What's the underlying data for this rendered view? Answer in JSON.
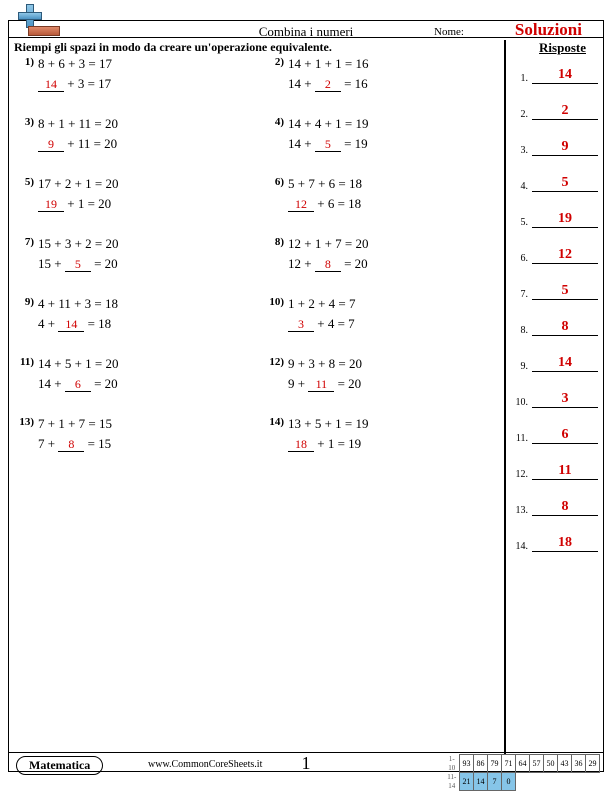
{
  "header": {
    "title": "Combina i numeri",
    "name_label": "Nome:",
    "solutions_label": "Soluzioni"
  },
  "instructions": "Riempi gli spazi in modo da creare un'operazione equivalente.",
  "answers_header": "Risposte",
  "colors": {
    "answer": "#d00000",
    "plus_fill": "#6aa8cc",
    "base_fill": "#c46a48"
  },
  "problems": [
    {
      "n": "1)",
      "line1": "8 + 6 + 3 = 17",
      "before": "",
      "blank": "14",
      "after": " + 3 = 17",
      "blank_pos": "start"
    },
    {
      "n": "2)",
      "line1": "14 + 1 + 1 = 16",
      "before": "14 + ",
      "blank": "2",
      "after": " = 16",
      "blank_pos": "mid"
    },
    {
      "n": "3)",
      "line1": "8 + 1 + 11 = 20",
      "before": "",
      "blank": "9",
      "after": " + 11 = 20",
      "blank_pos": "start"
    },
    {
      "n": "4)",
      "line1": "14 + 4 + 1 = 19",
      "before": "14 + ",
      "blank": "5",
      "after": " = 19",
      "blank_pos": "mid"
    },
    {
      "n": "5)",
      "line1": "17 + 2 + 1 = 20",
      "before": "",
      "blank": "19",
      "after": " + 1 = 20",
      "blank_pos": "start"
    },
    {
      "n": "6)",
      "line1": "5 + 7 + 6 = 18",
      "before": "",
      "blank": "12",
      "after": " + 6 = 18",
      "blank_pos": "start"
    },
    {
      "n": "7)",
      "line1": "15 + 3 + 2 = 20",
      "before": "15 + ",
      "blank": "5",
      "after": " = 20",
      "blank_pos": "mid"
    },
    {
      "n": "8)",
      "line1": "12 + 1 + 7 = 20",
      "before": "12 + ",
      "blank": "8",
      "after": " = 20",
      "blank_pos": "mid"
    },
    {
      "n": "9)",
      "line1": "4 + 11 + 3 = 18",
      "before": "4 + ",
      "blank": "14",
      "after": " = 18",
      "blank_pos": "mid"
    },
    {
      "n": "10)",
      "line1": "1 + 2 + 4 = 7",
      "before": "",
      "blank": "3",
      "after": " + 4 = 7",
      "blank_pos": "start"
    },
    {
      "n": "11)",
      "line1": "14 + 5 + 1 = 20",
      "before": "14 + ",
      "blank": "6",
      "after": " = 20",
      "blank_pos": "mid"
    },
    {
      "n": "12)",
      "line1": "9 + 3 + 8 = 20",
      "before": "9 + ",
      "blank": "11",
      "after": " = 20",
      "blank_pos": "mid"
    },
    {
      "n": "13)",
      "line1": "7 + 1 + 7 = 15",
      "before": "7 + ",
      "blank": "8",
      "after": " = 15",
      "blank_pos": "mid"
    },
    {
      "n": "14)",
      "line1": "13 + 5 + 1 = 19",
      "before": "",
      "blank": "18",
      "after": " + 1 = 19",
      "blank_pos": "start"
    }
  ],
  "answers": [
    "14",
    "2",
    "9",
    "5",
    "19",
    "12",
    "5",
    "8",
    "14",
    "3",
    "6",
    "11",
    "8",
    "18"
  ],
  "footer": {
    "subject": "Matematica",
    "url": "www.CommonCoreSheets.it",
    "page": "1",
    "score_rows": [
      {
        "label": "1-10",
        "cells": [
          "93",
          "86",
          "79",
          "71",
          "64",
          "57",
          "50",
          "43",
          "36",
          "29"
        ],
        "hl": []
      },
      {
        "label": "11-14",
        "cells": [
          "21",
          "14",
          "7",
          "0"
        ],
        "hl": [
          0,
          1,
          2,
          3
        ]
      }
    ]
  }
}
